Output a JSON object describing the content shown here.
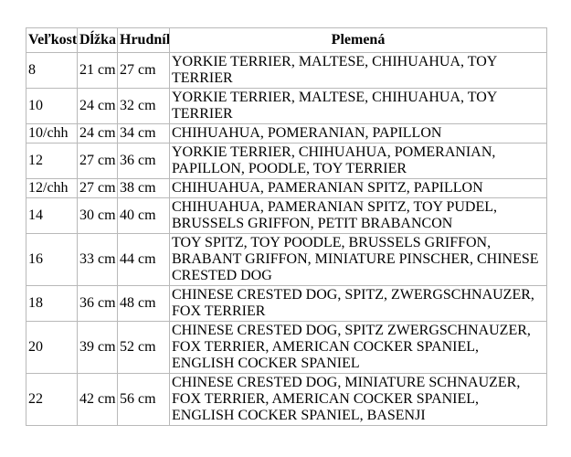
{
  "colors": {
    "background": "#ffffff",
    "table_border": "#b9b9b9",
    "text": "#000000"
  },
  "table": {
    "columns": [
      {
        "key": "size",
        "label": "Veľkosť"
      },
      {
        "key": "length",
        "label": "Dĺžka"
      },
      {
        "key": "chest",
        "label": "Hrudník"
      },
      {
        "key": "breeds",
        "label": "Plemená"
      }
    ],
    "rows": [
      {
        "size": "8",
        "length": "21 cm",
        "chest": "27 cm",
        "breeds": "YORKIE TERRIER, MALTESE, CHIHUAHUA, TOY TERRIER"
      },
      {
        "size": "10",
        "length": "24 cm",
        "chest": "32 cm",
        "breeds": "YORKIE TERRIER, MALTESE, CHIHUAHUA, TOY TERRIER"
      },
      {
        "size": "10/chh",
        "length": "24 cm",
        "chest": "34 cm",
        "breeds": "CHIHUAHUA, POMERANIAN, PAPILLON"
      },
      {
        "size": "12",
        "length": "27 cm",
        "chest": "36 cm",
        "breeds": "YORKIE TERRIER, CHIHUAHUA, POMERANIAN, PAPILLON, POODLE, TOY TERRIER"
      },
      {
        "size": "12/chh",
        "length": "27 cm",
        "chest": "38 cm",
        "breeds": "CHIHUAHUA, PAMERANIAN SPITZ, PAPILLON"
      },
      {
        "size": "14",
        "length": "30 cm",
        "chest": "40 cm",
        "breeds": "CHIHUAHUA, PAMERANIAN SPITZ, TOY PUDEL, BRUSSELS GRIFFON, PETIT BRABANCON"
      },
      {
        "size": "16",
        "length": "33 cm",
        "chest": "44 cm",
        "breeds": "TOY SPITZ, TOY POODLE, BRUSSELS GRIFFON, BRABANT GRIFFON, MINIATURE PINSCHER, CHINESE CRESTED DOG"
      },
      {
        "size": "18",
        "length": "36 cm",
        "chest": "48 cm",
        "breeds": "CHINESE CRESTED DOG, SPITZ, ZWERGSCHNAUZER, FOX TERRIER"
      },
      {
        "size": "20",
        "length": "39 cm",
        "chest": "52 cm",
        "breeds": "CHINESE CRESTED DOG, SPITZ ZWERGSCHNAUZER, FOX TERRIER, AMERICAN COCKER SPANIEL, ENGLISH COCKER SPANIEL"
      },
      {
        "size": "22",
        "length": "42 cm",
        "chest": "56 cm",
        "breeds": "CHINESE CRESTED DOG, MINIATURE SCHNAUZER, FOX TERRIER, AMERICAN COCKER SPANIEL, ENGLISH COCKER SPANIEL, BASENJI"
      }
    ]
  }
}
